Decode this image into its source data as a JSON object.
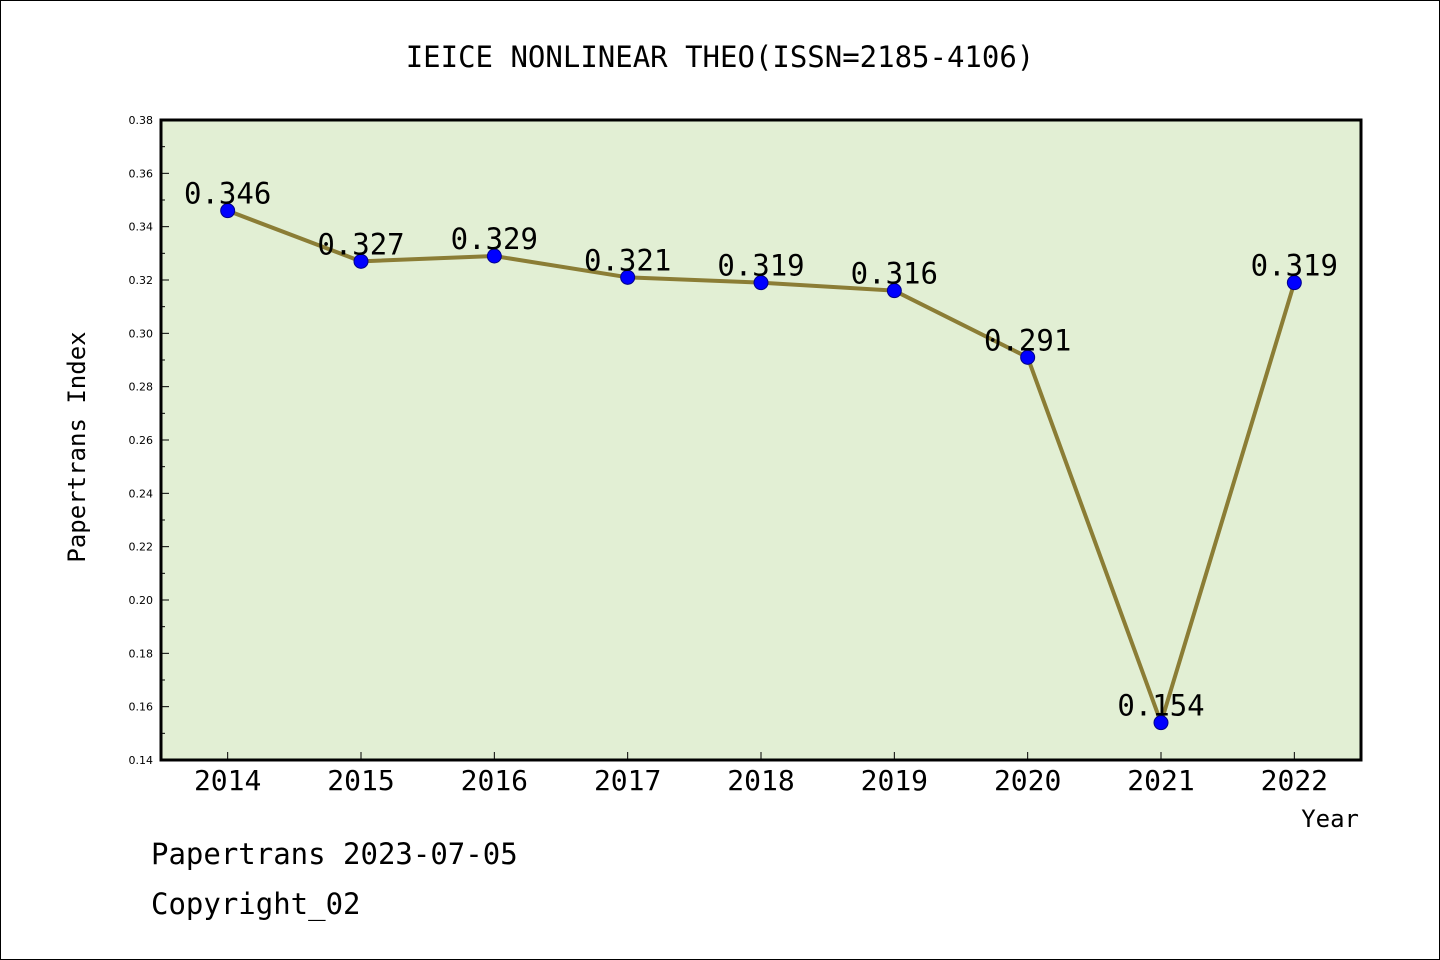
{
  "chart_data": {
    "type": "line",
    "title": "IEICE NONLINEAR THEO(ISSN=2185-4106)",
    "xlabel": "Year",
    "ylabel": "Papertrans Index",
    "categories": [
      "2014",
      "2015",
      "2016",
      "2017",
      "2018",
      "2019",
      "2020",
      "2021",
      "2022"
    ],
    "series": [
      {
        "values": [
          0.346,
          0.327,
          0.329,
          0.321,
          0.319,
          0.316,
          0.291,
          0.154,
          0.319
        ]
      }
    ],
    "data_labels": [
      "0.346",
      "0.327",
      "0.329",
      "0.321",
      "0.319",
      "0.316",
      "0.291",
      "0.154",
      "0.319"
    ],
    "ylim": [
      0.14,
      0.38
    ],
    "yticks": [
      "0.14",
      "0.16",
      "0.18",
      "0.20",
      "0.22",
      "0.24",
      "0.26",
      "0.28",
      "0.30",
      "0.32",
      "0.34",
      "0.36",
      "0.38"
    ],
    "grid": false,
    "colors": {
      "plot_background": "#e2efd4",
      "line": "#8b7d35",
      "marker": "#0000ff"
    }
  },
  "footer": {
    "source": "Papertrans 2023-07-05",
    "copyright": "Copyright_02"
  }
}
